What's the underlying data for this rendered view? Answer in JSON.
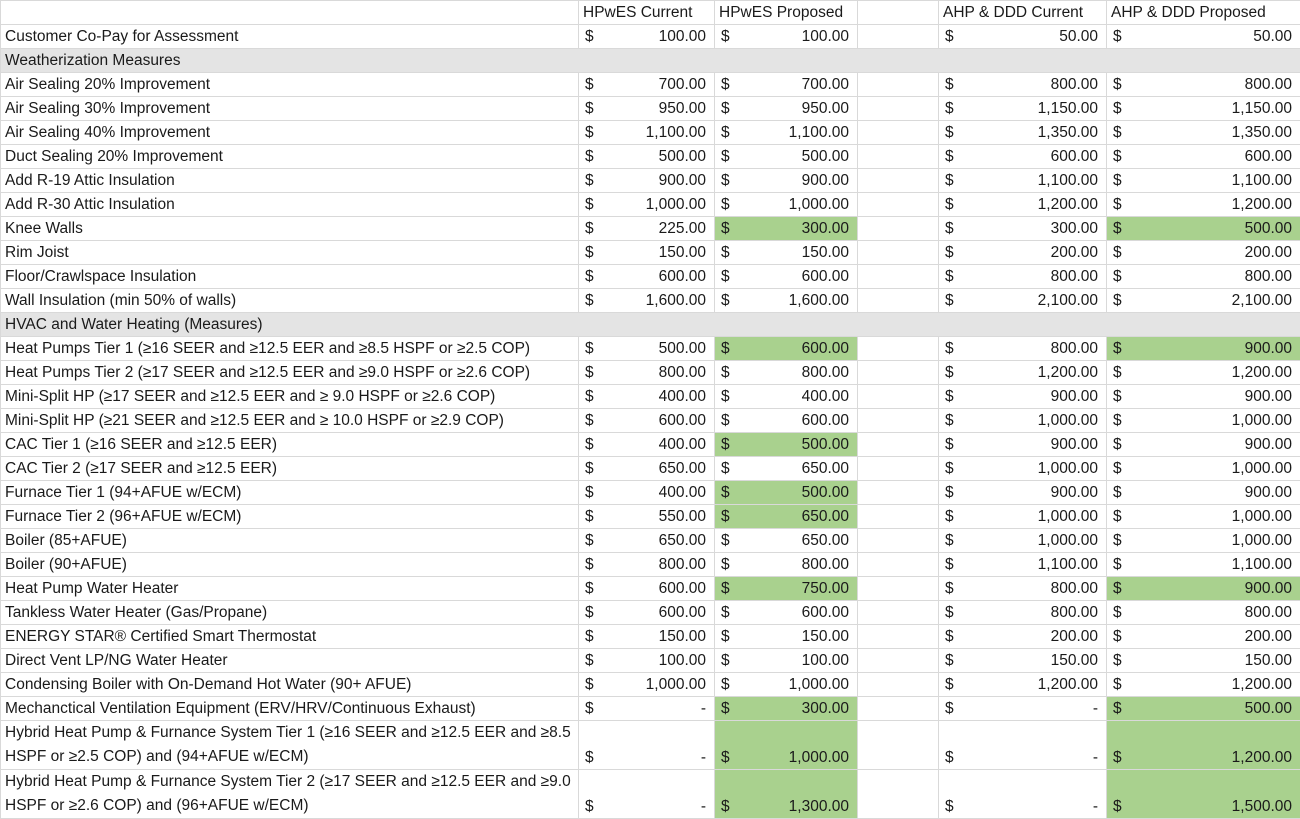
{
  "columns": {
    "label": "",
    "hpwes_current": "HPwES Current",
    "hpwes_proposed": "HPwES Proposed",
    "ahp_current": "AHP & DDD Current",
    "ahp_proposed": "AHP & DDD Proposed"
  },
  "currency": "$",
  "highlight_color": "#a9d18e",
  "rows": [
    {
      "type": "item",
      "label": "Customer Co-Pay for Assessment",
      "v": [
        "100.00",
        "100.00",
        "50.00",
        "50.00"
      ],
      "hl": [
        false,
        false,
        false,
        false
      ]
    },
    {
      "type": "section",
      "label": "Weatherization Measures"
    },
    {
      "type": "item",
      "label": "Air Sealing 20% Improvement",
      "v": [
        "700.00",
        "700.00",
        "800.00",
        "800.00"
      ],
      "hl": [
        false,
        false,
        false,
        false
      ]
    },
    {
      "type": "item",
      "label": "Air Sealing 30% Improvement",
      "v": [
        "950.00",
        "950.00",
        "1,150.00",
        "1,150.00"
      ],
      "hl": [
        false,
        false,
        false,
        false
      ]
    },
    {
      "type": "item",
      "label": "Air Sealing 40% Improvement",
      "v": [
        "1,100.00",
        "1,100.00",
        "1,350.00",
        "1,350.00"
      ],
      "hl": [
        false,
        false,
        false,
        false
      ]
    },
    {
      "type": "item",
      "label": "Duct Sealing 20% Improvement",
      "v": [
        "500.00",
        "500.00",
        "600.00",
        "600.00"
      ],
      "hl": [
        false,
        false,
        false,
        false
      ]
    },
    {
      "type": "item",
      "label": "Add R-19 Attic Insulation",
      "v": [
        "900.00",
        "900.00",
        "1,100.00",
        "1,100.00"
      ],
      "hl": [
        false,
        false,
        false,
        false
      ]
    },
    {
      "type": "item",
      "label": "Add R-30 Attic Insulation",
      "v": [
        "1,000.00",
        "1,000.00",
        "1,200.00",
        "1,200.00"
      ],
      "hl": [
        false,
        false,
        false,
        false
      ]
    },
    {
      "type": "item",
      "label": "Knee Walls",
      "v": [
        "225.00",
        "300.00",
        "300.00",
        "500.00"
      ],
      "hl": [
        false,
        true,
        false,
        true
      ]
    },
    {
      "type": "item",
      "label": "Rim Joist",
      "v": [
        "150.00",
        "150.00",
        "200.00",
        "200.00"
      ],
      "hl": [
        false,
        false,
        false,
        false
      ]
    },
    {
      "type": "item",
      "label": "Floor/Crawlspace Insulation",
      "v": [
        "600.00",
        "600.00",
        "800.00",
        "800.00"
      ],
      "hl": [
        false,
        false,
        false,
        false
      ]
    },
    {
      "type": "item",
      "label": "Wall Insulation (min 50% of walls)",
      "v": [
        "1,600.00",
        "1,600.00",
        "2,100.00",
        "2,100.00"
      ],
      "hl": [
        false,
        false,
        false,
        false
      ]
    },
    {
      "type": "section",
      "label": "HVAC and Water Heating (Measures)"
    },
    {
      "type": "item",
      "label": "Heat Pumps Tier 1 (≥16 SEER and ≥12.5 EER and ≥8.5 HSPF or ≥2.5 COP)",
      "v": [
        "500.00",
        "600.00",
        "800.00",
        "900.00"
      ],
      "hl": [
        false,
        true,
        false,
        true
      ]
    },
    {
      "type": "item",
      "label": "Heat Pumps Tier 2 (≥17 SEER and ≥12.5 EER and ≥9.0 HSPF or ≥2.6 COP)",
      "v": [
        "800.00",
        "800.00",
        "1,200.00",
        "1,200.00"
      ],
      "hl": [
        false,
        false,
        false,
        false
      ]
    },
    {
      "type": "item",
      "label": "Mini-Split HP (≥17 SEER and ≥12.5 EER and ≥ 9.0 HSPF or ≥2.6 COP)",
      "v": [
        "400.00",
        "400.00",
        "900.00",
        "900.00"
      ],
      "hl": [
        false,
        false,
        false,
        false
      ]
    },
    {
      "type": "item",
      "label": "Mini-Split HP (≥21 SEER and ≥12.5 EER and ≥ 10.0 HSPF or ≥2.9 COP)",
      "v": [
        "600.00",
        "600.00",
        "1,000.00",
        "1,000.00"
      ],
      "hl": [
        false,
        false,
        false,
        false
      ]
    },
    {
      "type": "item",
      "label": "CAC Tier 1 (≥16 SEER and ≥12.5 EER)",
      "v": [
        "400.00",
        "500.00",
        "900.00",
        "900.00"
      ],
      "hl": [
        false,
        true,
        false,
        false
      ]
    },
    {
      "type": "item",
      "label": "CAC Tier 2 (≥17 SEER and ≥12.5 EER)",
      "v": [
        "650.00",
        "650.00",
        "1,000.00",
        "1,000.00"
      ],
      "hl": [
        false,
        false,
        false,
        false
      ]
    },
    {
      "type": "item",
      "label": "Furnace Tier 1 (94+AFUE w/ECM)",
      "v": [
        "400.00",
        "500.00",
        "900.00",
        "900.00"
      ],
      "hl": [
        false,
        true,
        false,
        false
      ]
    },
    {
      "type": "item",
      "label": "Furnace Tier 2 (96+AFUE w/ECM)",
      "v": [
        "550.00",
        "650.00",
        "1,000.00",
        "1,000.00"
      ],
      "hl": [
        false,
        true,
        false,
        false
      ]
    },
    {
      "type": "item",
      "label": "Boiler (85+AFUE)",
      "v": [
        "650.00",
        "650.00",
        "1,000.00",
        "1,000.00"
      ],
      "hl": [
        false,
        false,
        false,
        false
      ]
    },
    {
      "type": "item",
      "label": "Boiler (90+AFUE)",
      "v": [
        "800.00",
        "800.00",
        "1,100.00",
        "1,100.00"
      ],
      "hl": [
        false,
        false,
        false,
        false
      ]
    },
    {
      "type": "item",
      "label": "Heat Pump Water Heater",
      "v": [
        "600.00",
        "750.00",
        "800.00",
        "900.00"
      ],
      "hl": [
        false,
        true,
        false,
        true
      ]
    },
    {
      "type": "item",
      "label": "Tankless Water Heater (Gas/Propane)",
      "v": [
        "600.00",
        "600.00",
        "800.00",
        "800.00"
      ],
      "hl": [
        false,
        false,
        false,
        false
      ]
    },
    {
      "type": "item",
      "label": "ENERGY STAR® Certified Smart Thermostat",
      "v": [
        "150.00",
        "150.00",
        "200.00",
        "200.00"
      ],
      "hl": [
        false,
        false,
        false,
        false
      ]
    },
    {
      "type": "item",
      "label": "Direct Vent LP/NG Water Heater",
      "v": [
        "100.00",
        "100.00",
        "150.00",
        "150.00"
      ],
      "hl": [
        false,
        false,
        false,
        false
      ]
    },
    {
      "type": "item",
      "label": "Condensing Boiler with On-Demand Hot Water (90+ AFUE)",
      "v": [
        "1,000.00",
        "1,000.00",
        "1,200.00",
        "1,200.00"
      ],
      "hl": [
        false,
        false,
        false,
        false
      ]
    },
    {
      "type": "item",
      "label": "Mechanctical Ventilation Equipment (ERV/HRV/Continuous Exhaust)",
      "v": [
        "-",
        "300.00",
        "-",
        "500.00"
      ],
      "hl": [
        false,
        true,
        false,
        true
      ]
    },
    {
      "type": "tall",
      "label": "Hybrid Heat Pump & Furnance System Tier 1 (≥16 SEER and ≥12.5 EER and ≥8.5 HSPF or ≥2.5 COP) and (94+AFUE w/ECM)",
      "v": [
        "-",
        "1,000.00",
        "-",
        "1,200.00"
      ],
      "hl": [
        false,
        true,
        false,
        true
      ]
    },
    {
      "type": "tall",
      "label": " Hybrid Heat Pump & Furnance System Tier 2 (≥17 SEER and ≥12.5 EER and ≥9.0 HSPF or ≥2.6 COP) and (96+AFUE w/ECM)",
      "v": [
        "-",
        "1,300.00",
        "-",
        "1,500.00"
      ],
      "hl": [
        false,
        true,
        false,
        true
      ]
    }
  ]
}
